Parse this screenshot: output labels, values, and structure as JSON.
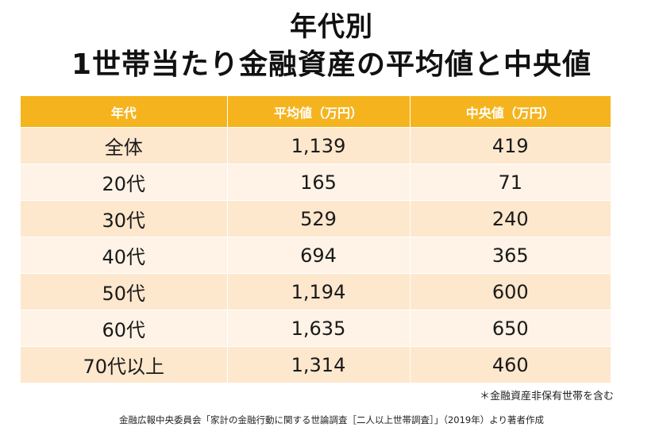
{
  "title": {
    "line1": "年代別",
    "line2": "1世帯当たり金融資産の平均値と中央値"
  },
  "table": {
    "headers": [
      "年代",
      "平均値（万円）",
      "中央値（万円）"
    ],
    "rows": [
      [
        "全体",
        "1,139",
        "419"
      ],
      [
        "20代",
        "165",
        "71"
      ],
      [
        "30代",
        "529",
        "240"
      ],
      [
        "40代",
        "694",
        "365"
      ],
      [
        "50代",
        "1,194",
        "600"
      ],
      [
        "60代",
        "1,635",
        "650"
      ],
      [
        "70代以上",
        "1,314",
        "460"
      ]
    ]
  },
  "footnote": "＊金融資産非保有世帯を含む",
  "source": "金融広報中央委員会「家計の金融行動に関する世論調査［二人以上世帯調査］」（2019年）より著者作成",
  "colors": {
    "header_bg": "#f5b41e",
    "row_odd_bg": "#fde7cd",
    "row_even_bg": "#fef3e6"
  }
}
